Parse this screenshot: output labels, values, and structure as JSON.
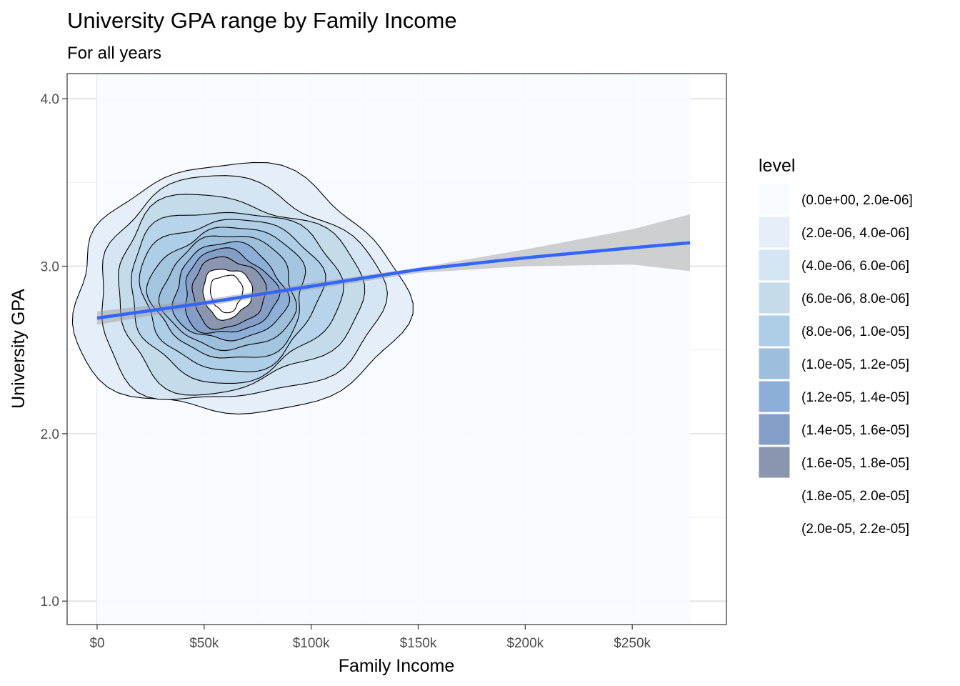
{
  "chart_data": {
    "type": "density_contour",
    "title": "University GPA range by Family Income",
    "subtitle": "For all years",
    "xlabel": "Family Income",
    "ylabel": "University GPA",
    "xlim": [
      -14000,
      294000
    ],
    "ylim": [
      0.86,
      4.15
    ],
    "x_ticks": [
      {
        "value": 0,
        "label": "$0"
      },
      {
        "value": 50000,
        "label": "$50k"
      },
      {
        "value": 100000,
        "label": "$100k"
      },
      {
        "value": 150000,
        "label": "$150k"
      },
      {
        "value": 200000,
        "label": "$200k"
      },
      {
        "value": 250000,
        "label": "$250k"
      }
    ],
    "y_ticks": [
      {
        "value": 1.0,
        "label": "1.0"
      },
      {
        "value": 2.0,
        "label": "2.0"
      },
      {
        "value": 3.0,
        "label": "3.0"
      },
      {
        "value": 4.0,
        "label": "4.0"
      }
    ],
    "grid": true,
    "legend": {
      "title": "level",
      "placement": "right",
      "entries": [
        {
          "label": "(0.0e+00, 2.0e-06]",
          "color": "#f7fbff"
        },
        {
          "label": "(2.0e-06, 4.0e-06]",
          "color": "#e6eff9"
        },
        {
          "label": "(4.0e-06, 6.0e-06]",
          "color": "#d6e5f3"
        },
        {
          "label": "(6.0e-06, 8.0e-06]",
          "color": "#c4dbea"
        },
        {
          "label": "(8.0e-06, 1.0e-05]",
          "color": "#aecde6"
        },
        {
          "label": "(1.0e-05, 1.2e-05]",
          "color": "#9ebfdc"
        },
        {
          "label": "(1.2e-05, 1.4e-05]",
          "color": "#8daed6"
        },
        {
          "label": "(1.4e-05, 1.6e-05]",
          "color": "#859ec8"
        },
        {
          "label": "(1.6e-05, 1.8e-05]",
          "color": "#8a95b0"
        },
        {
          "label": "(1.8e-05, 2.0e-05]",
          "color": "#ffffff"
        },
        {
          "label": "(2.0e-05, 2.2e-05]",
          "color": "#ffffff"
        }
      ]
    },
    "background_fill": "#f7fbff",
    "background_x_range": [
      0,
      277000
    ],
    "density_center": {
      "x": 60000,
      "y": 2.84
    },
    "contour_levels": [
      {
        "rx": 77000,
        "ry": 0.74,
        "fill": "#e6eff9"
      },
      {
        "rx": 66000,
        "ry": 0.66,
        "fill": "#d6e5f3"
      },
      {
        "rx": 57000,
        "ry": 0.58,
        "fill": "#c4dbea"
      },
      {
        "rx": 49000,
        "ry": 0.51,
        "fill": "#b8d4ea"
      },
      {
        "rx": 42000,
        "ry": 0.45,
        "fill": "#aecde6"
      },
      {
        "rx": 36000,
        "ry": 0.39,
        "fill": "#a4c5e0"
      },
      {
        "rx": 31000,
        "ry": 0.34,
        "fill": "#9ebfdc"
      },
      {
        "rx": 26000,
        "ry": 0.29,
        "fill": "#8daed6"
      },
      {
        "rx": 21500,
        "ry": 0.25,
        "fill": "#859ec8"
      },
      {
        "rx": 17000,
        "ry": 0.21,
        "fill": "#8a95b0"
      },
      {
        "rx": 11500,
        "ry": 0.15,
        "fill": "#ffffff"
      },
      {
        "rx": 7500,
        "ry": 0.11,
        "fill": "#ffffff"
      }
    ],
    "smooth_line": {
      "color": "#3366ff",
      "x": [
        0,
        50000,
        100000,
        150000,
        200000,
        250000,
        277000
      ],
      "y": [
        2.69,
        2.78,
        2.88,
        2.98,
        3.05,
        3.11,
        3.14
      ]
    },
    "confidence_band": {
      "color": "#999999",
      "x": [
        0,
        50000,
        100000,
        150000,
        200000,
        250000,
        277000
      ],
      "upper": [
        2.73,
        2.8,
        2.9,
        2.99,
        3.1,
        3.22,
        3.31
      ],
      "lower": [
        2.65,
        2.76,
        2.86,
        2.96,
        3.0,
        3.01,
        2.97
      ]
    }
  }
}
